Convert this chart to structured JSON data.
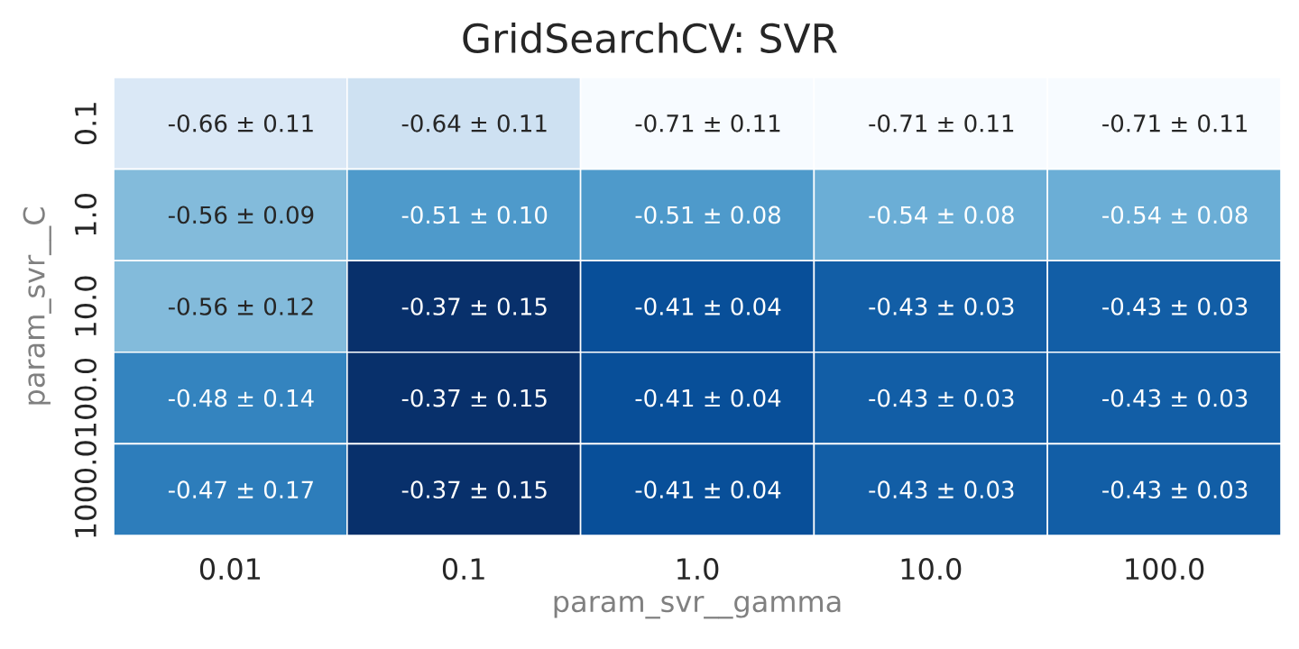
{
  "chart_data": {
    "type": "heatmap",
    "title": "GridSearchCV: SVR",
    "xlabel": "param_svr__gamma",
    "ylabel": "param_svr__C",
    "categories": [
      "0.01",
      "0.1",
      "1.0",
      "10.0",
      "100.0"
    ],
    "y_categories": [
      "0.1",
      "1.0",
      "10.0",
      "100.0",
      "1000.0"
    ],
    "cells": [
      [
        -0.66,
        -0.64,
        -0.71,
        -0.71,
        -0.71
      ],
      [
        -0.56,
        -0.51,
        -0.51,
        -0.54,
        -0.54
      ],
      [
        -0.56,
        -0.37,
        -0.41,
        -0.43,
        -0.43
      ],
      [
        -0.48,
        -0.37,
        -0.41,
        -0.43,
        -0.43
      ],
      [
        -0.47,
        -0.37,
        -0.41,
        -0.43,
        -0.43
      ]
    ],
    "data_labels": true,
    "annotations": [
      "± 0.11",
      "± 0.11",
      "± 0.11",
      "± 0.11",
      "± 0.11",
      "± 0.09",
      "± 0.10",
      "± 0.08",
      "± 0.08",
      "± 0.08",
      "± 0.12",
      "± 0.15",
      "± 0.04",
      "± 0.03",
      "± 0.03",
      "± 0.14",
      "± 0.15",
      "± 0.04",
      "± 0.03",
      "± 0.03",
      "± 0.17",
      "± 0.15",
      "± 0.04",
      "± 0.03",
      "± 0.03"
    ]
  }
}
